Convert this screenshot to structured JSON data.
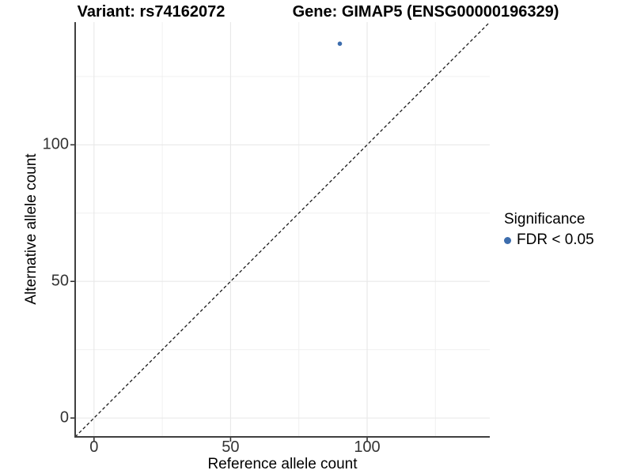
{
  "titles": {
    "left": "Variant: rs74162072",
    "right": "Gene: GIMAP5 (ENSG00000196329)"
  },
  "legend": {
    "title": "Significance",
    "items": [
      {
        "label": "FDR < 0.05",
        "color": "#3d6dad"
      }
    ]
  },
  "chart_data": {
    "type": "scatter",
    "title": "Variant: rs74162072 / Gene: GIMAP5 (ENSG00000196329)",
    "xlabel": "Reference allele count",
    "ylabel": "Alternative allele count",
    "xlim": [
      -6.9,
      144.9
    ],
    "ylim": [
      -6.9,
      144.9
    ],
    "x_ticks": [
      0,
      50,
      100
    ],
    "y_ticks": [
      0,
      50,
      100
    ],
    "x_minor_gridlines": [
      25,
      75,
      125
    ],
    "y_minor_gridlines": [
      25,
      75,
      125
    ],
    "grid": true,
    "legend_position": "right",
    "series": [
      {
        "name": "FDR < 0.05",
        "color": "#3d6dad",
        "points": [
          {
            "x": 90,
            "y": 137
          }
        ]
      }
    ],
    "reference_line": {
      "kind": "identity",
      "slope": 1,
      "intercept": 0,
      "style": "dashed",
      "color": "#1a1a1a"
    },
    "colors": {
      "point": "#3d6dad",
      "grid_major": "#e8e8e8",
      "grid_minor": "#f0f0f0",
      "axis_line": "#404040",
      "tick_text": "#333333"
    }
  }
}
